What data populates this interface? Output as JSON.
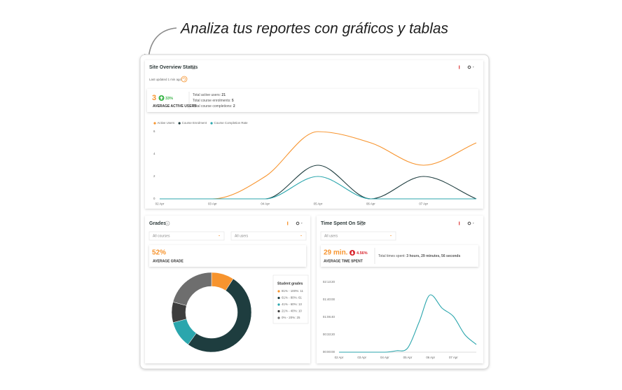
{
  "caption": "Analiza tus reportes con gráficos y tablas",
  "site_overview": {
    "title": "Site Overview Status",
    "last_updated": "Last updated 1 min ago",
    "active_users": "3",
    "active_users_change": "33%",
    "active_users_label": "AVERAGE ACTIVE USERS",
    "totals": [
      {
        "label": "Total active users:",
        "value": 21
      },
      {
        "label": "Total course enrolments:",
        "value": 5
      },
      {
        "label": "Total course completions:",
        "value": 2
      }
    ],
    "chart": {
      "type": "line",
      "categories": [
        "02 Apr",
        "03 Apr",
        "04 Apr",
        "05 Apr",
        "06 Apr",
        "07 Apr",
        null
      ],
      "ylim": [
        0,
        6
      ],
      "yticks": [
        0,
        2,
        4,
        6
      ],
      "series": [
        {
          "name": "Active Users",
          "color": "#f7942e",
          "values": [
            0,
            0,
            2,
            6,
            5,
            3,
            5
          ]
        },
        {
          "name": "Course Enrolment",
          "color": "#1e3d3f",
          "values": [
            0,
            0,
            0,
            3,
            0,
            2,
            0
          ]
        },
        {
          "name": "Course Completion Rate",
          "color": "#2ba6ad",
          "values": [
            0,
            0,
            0,
            2,
            0,
            0,
            0
          ]
        }
      ]
    }
  },
  "grades": {
    "title": "Grades",
    "course_filter": "All courses",
    "user_filter": "All users",
    "average": "52%",
    "average_label": "AVERAGE GRADE",
    "chart": {
      "type": "donut",
      "title": "Student grades",
      "categories": [
        "81% - 100%:",
        "61% - 80%:",
        "41% - 60%:",
        "21% - 40%:",
        "0% - 20%:"
      ],
      "values": [
        11,
        61,
        13,
        10,
        25
      ],
      "colors": [
        "#f7942e",
        "#1e3d3f",
        "#2ba6ad",
        "#3d3d3d",
        "#6e6e6e"
      ]
    }
  },
  "time_spent": {
    "title": "Time Spent On Site",
    "user_filter": "All users",
    "average": "29 min.",
    "change": "4.56%",
    "average_label": "AVERAGE TIME SPENT",
    "total_label": "Total times spent:",
    "total": "3 hours, 29 minutes, 56 seconds",
    "chart": {
      "type": "line",
      "categories": [
        "02 Apr",
        null,
        "03 Apr",
        null,
        "04 Apr",
        null,
        "05 Apr",
        null,
        "06 Apr",
        null,
        "07 Apr",
        null,
        null
      ],
      "ylim": [
        0,
        8000
      ],
      "yticks": [
        {
          "value": 0,
          "label": "00:00:00"
        },
        {
          "value": 2000,
          "label": "00:33:20"
        },
        {
          "value": 4000,
          "label": "01:06:40"
        },
        {
          "value": 6000,
          "label": "01:40:00"
        },
        {
          "value": 8000,
          "label": "02:13:20"
        }
      ],
      "series": [
        {
          "color": "#2ba6ad",
          "values": [
            0,
            0,
            0,
            0,
            0,
            160,
            480,
            3440,
            6560,
            5040,
            4080,
            2000,
            880
          ]
        }
      ]
    }
  }
}
